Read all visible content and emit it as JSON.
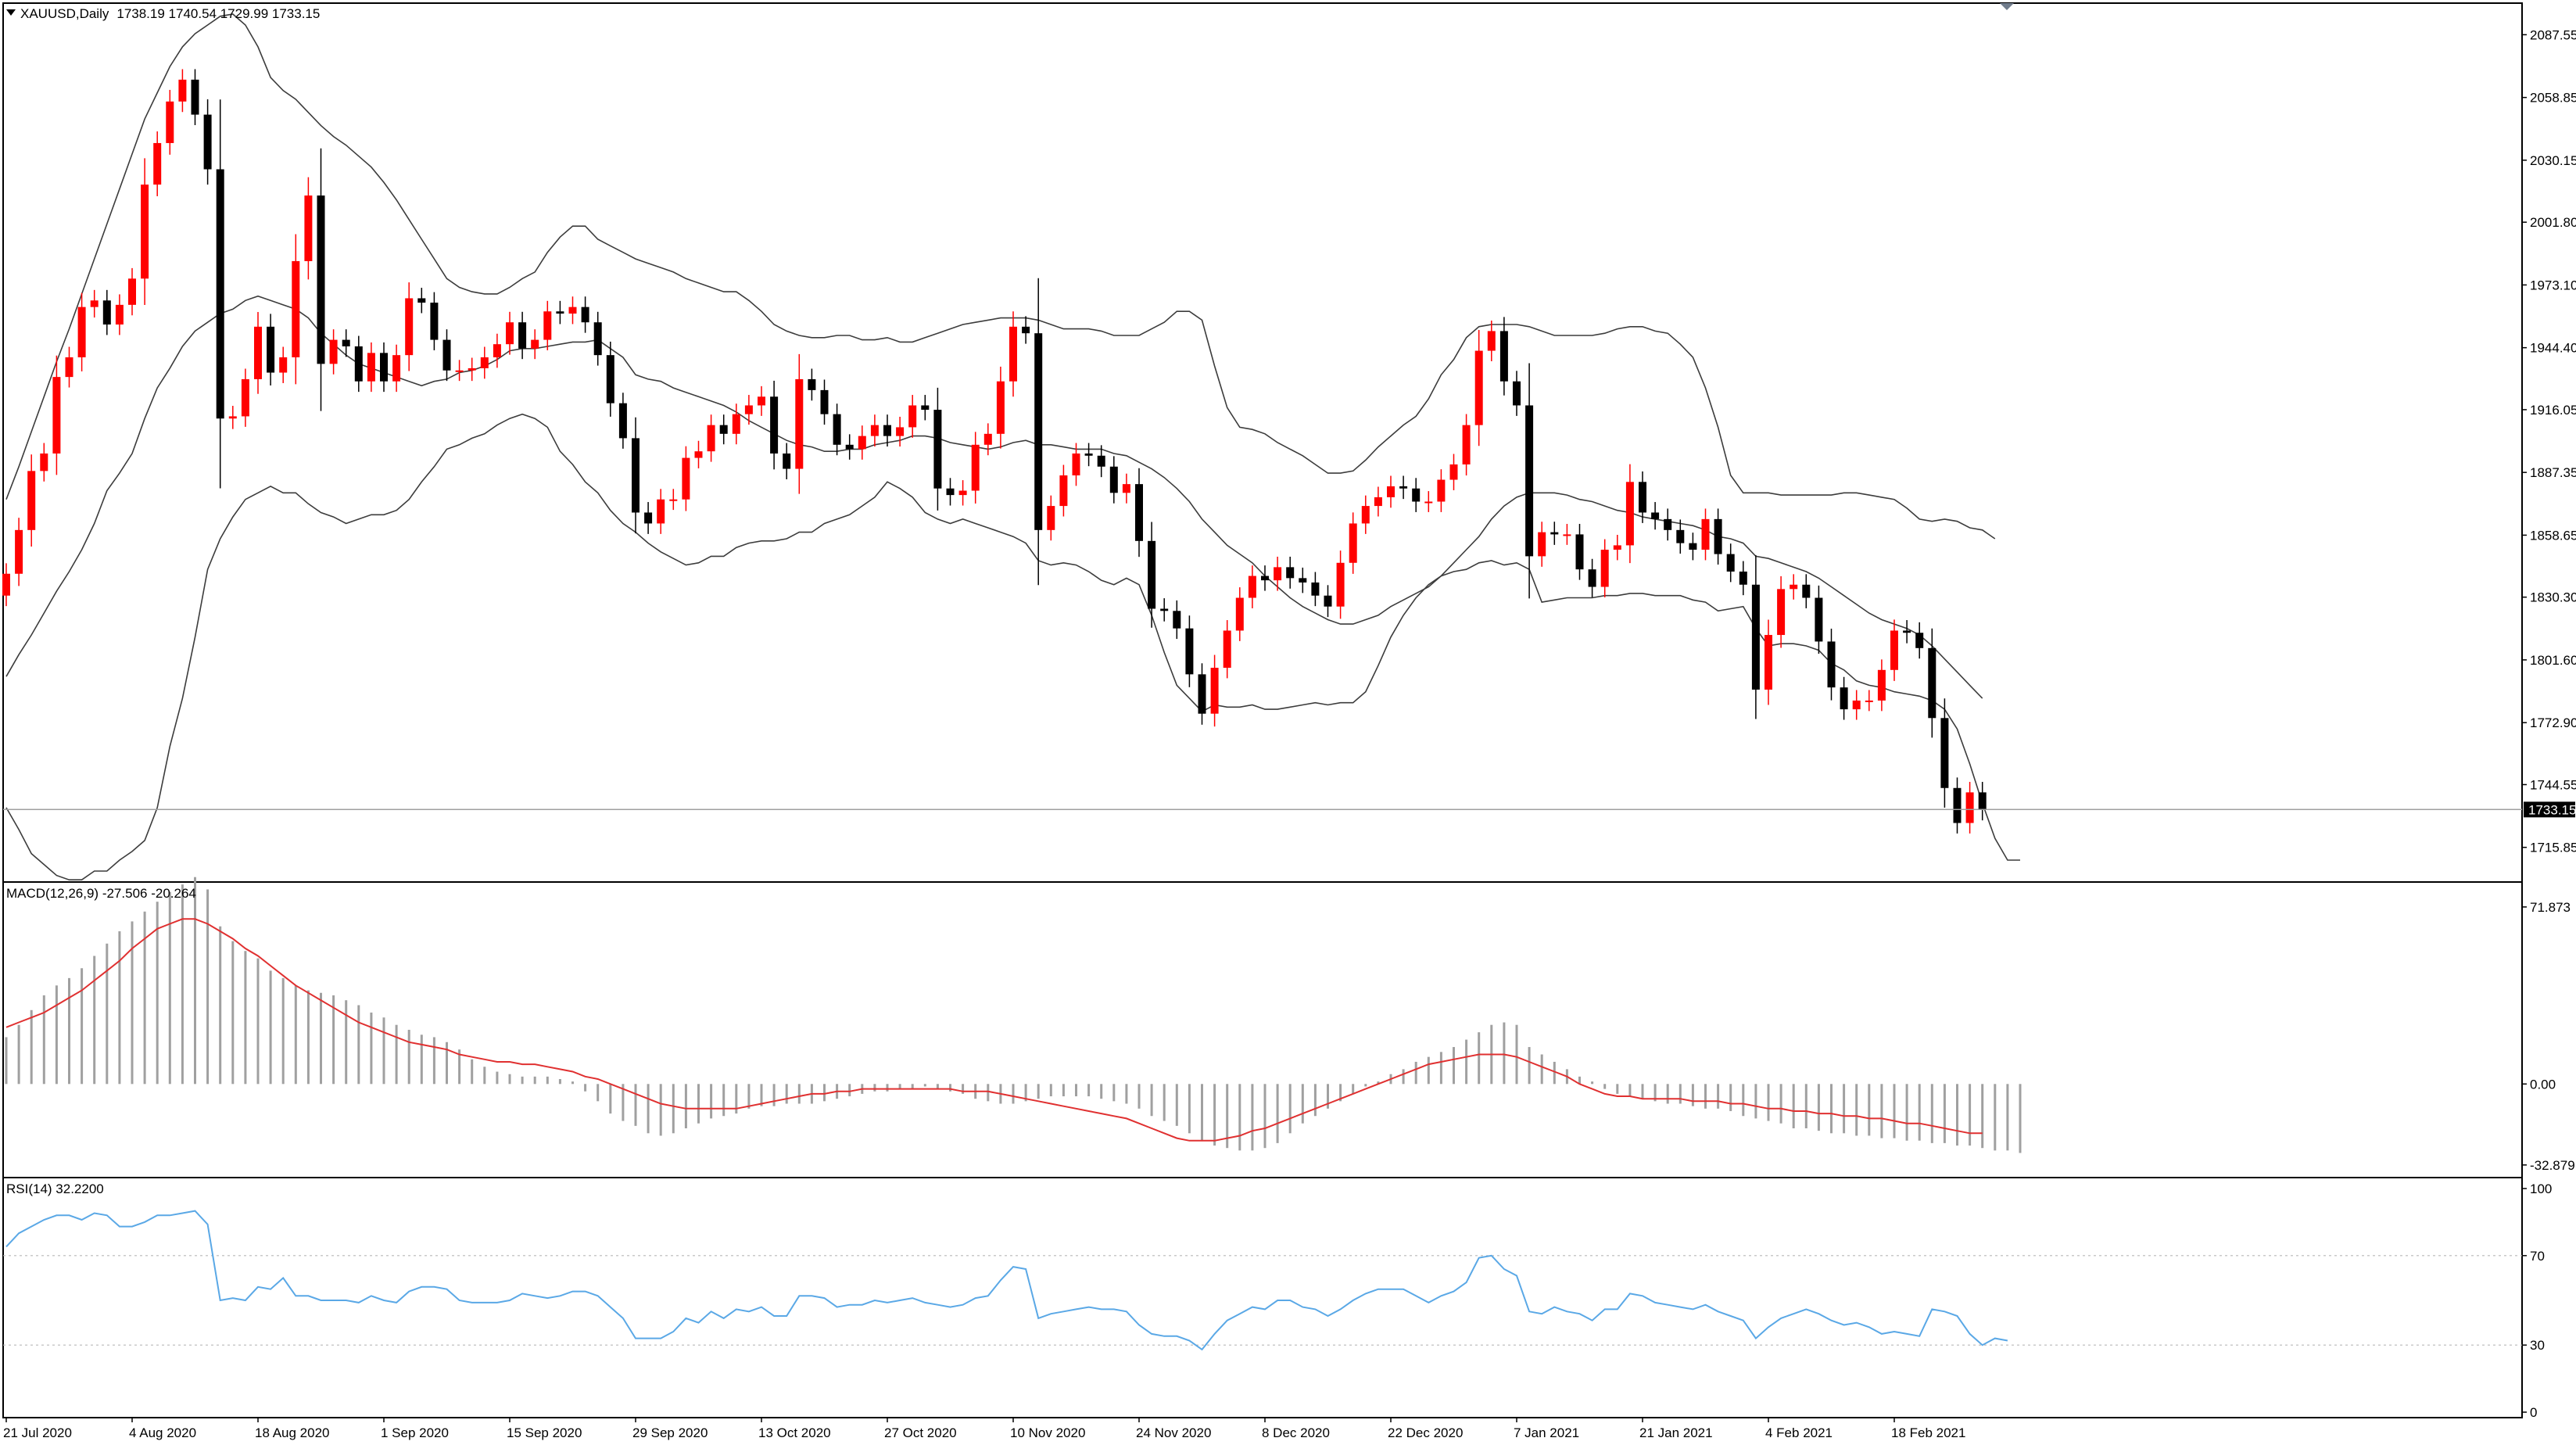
{
  "chart_data": [
    {
      "type": "candlestick",
      "symbol": "XAUUSD,Daily",
      "ohlc_label": "1738.19 1740.54 1729.99 1733.15",
      "last_price_label": "1733.15",
      "last_price": 1733.15,
      "ylim": [
        1700,
        2102
      ],
      "y_ticks": [
        {
          "value": 2087.55,
          "label": "2087.55"
        },
        {
          "value": 2058.85,
          "label": "2058.85"
        },
        {
          "value": 2030.15,
          "label": "2030.15"
        },
        {
          "value": 2001.8,
          "label": "2001.80"
        },
        {
          "value": 1973.1,
          "label": "1973.10"
        },
        {
          "value": 1944.4,
          "label": "1944.40"
        },
        {
          "value": 1916.05,
          "label": "1916.05"
        },
        {
          "value": 1887.35,
          "label": "1887.35"
        },
        {
          "value": 1858.65,
          "label": "1858.65"
        },
        {
          "value": 1830.3,
          "label": "1830.30"
        },
        {
          "value": 1801.6,
          "label": "1801.60"
        },
        {
          "value": 1772.9,
          "label": "1772.90"
        },
        {
          "value": 1744.55,
          "label": "1744.55"
        },
        {
          "value": 1715.85,
          "label": "1715.85"
        }
      ],
      "x_labels": [
        {
          "index": 0,
          "label": "21 Jul 2020"
        },
        {
          "index": 10,
          "label": "4 Aug 2020"
        },
        {
          "index": 20,
          "label": "18 Aug 2020"
        },
        {
          "index": 30,
          "label": "1 Sep 2020"
        },
        {
          "index": 40,
          "label": "15 Sep 2020"
        },
        {
          "index": 50,
          "label": "29 Sep 2020"
        },
        {
          "index": 60,
          "label": "13 Oct 2020"
        },
        {
          "index": 70,
          "label": "27 Oct 2020"
        },
        {
          "index": 80,
          "label": "10 Nov 2020"
        },
        {
          "index": 90,
          "label": "24 Nov 2020"
        },
        {
          "index": 100,
          "label": "8 Dec 2020"
        },
        {
          "index": 110,
          "label": "22 Dec 2020"
        },
        {
          "index": 120,
          "label": "7 Jan 2021"
        },
        {
          "index": 130,
          "label": "21 Jan 2021"
        },
        {
          "index": 140,
          "label": "4 Feb 2021"
        },
        {
          "index": 150,
          "label": "18 Feb 2021"
        }
      ],
      "colors": {
        "bull": "#ff0000",
        "bear": "#000000",
        "bands": "#3c3c3c"
      },
      "indicators": [
        "Bollinger Bands"
      ],
      "close": [
        1841,
        1861,
        1888,
        1896,
        1931,
        1940,
        1963,
        1966,
        1955,
        1964,
        1976,
        2019,
        2038,
        2057,
        2067,
        2051,
        2026,
        1912,
        1913,
        1930,
        1954,
        1933,
        1940,
        1984,
        2014,
        1937,
        1948,
        1945,
        1929,
        1942,
        1929,
        1941,
        1967,
        1965,
        1948,
        1934,
        1934,
        1935,
        1940,
        1946,
        1956,
        1944,
        1948,
        1961,
        1960,
        1963,
        1956,
        1941,
        1919,
        1903,
        1869,
        1864,
        1875,
        1875,
        1894,
        1897,
        1909,
        1905,
        1914,
        1918,
        1922,
        1896,
        1889,
        1930,
        1925,
        1914,
        1900,
        1898,
        1904,
        1909,
        1904,
        1908,
        1918,
        1916,
        1880,
        1877,
        1879,
        1900,
        1905,
        1929,
        1954,
        1951,
        1861,
        1872,
        1886,
        1896,
        1895,
        1890,
        1878,
        1882,
        1856,
        1825,
        1824,
        1816,
        1795,
        1777,
        1798,
        1815,
        1830,
        1840,
        1838,
        1844,
        1839,
        1837,
        1831,
        1826,
        1846,
        1864,
        1872,
        1876,
        1881,
        1880,
        1874,
        1874,
        1884,
        1891,
        1909,
        1943,
        1952,
        1929,
        1918,
        1849,
        1860,
        1859,
        1859,
        1843,
        1835,
        1852,
        1854,
        1883,
        1869,
        1866,
        1861,
        1855,
        1852,
        1866,
        1850,
        1842,
        1836,
        1788,
        1813,
        1834,
        1836,
        1830,
        1810,
        1789,
        1779,
        1783,
        1783,
        1797,
        1815,
        1814,
        1807,
        1775,
        1743,
        1727,
        1741,
        1733
      ],
      "sma20": [
        1794,
        1804,
        1813,
        1823,
        1833,
        1842,
        1852,
        1864,
        1879,
        1887,
        1896,
        1912,
        1926,
        1935,
        1945,
        1952,
        1956,
        1960,
        1962,
        1966,
        1968,
        1966,
        1964,
        1962,
        1958,
        1951,
        1946,
        1941,
        1937,
        1935,
        1933,
        1931,
        1929,
        1927,
        1929,
        1930,
        1933,
        1934,
        1936,
        1939,
        1943,
        1944,
        1944,
        1945,
        1946,
        1947,
        1947,
        1948,
        1944,
        1940,
        1932,
        1930,
        1929,
        1926,
        1924,
        1922,
        1920,
        1918,
        1915,
        1911,
        1908,
        1905,
        1902,
        1900,
        1899,
        1897,
        1897,
        1898,
        1898,
        1900,
        1901,
        1902,
        1904,
        1904,
        1903,
        1901,
        1900,
        1899,
        1898,
        1899,
        1901,
        1902,
        1900,
        1900,
        1899,
        1898,
        1898,
        1898,
        1896,
        1895,
        1892,
        1889,
        1885,
        1880,
        1874,
        1866,
        1860,
        1854,
        1850,
        1846,
        1840,
        1835,
        1830,
        1826,
        1823,
        1820,
        1818,
        1818,
        1820,
        1822,
        1826,
        1829,
        1832,
        1835,
        1840,
        1846,
        1852,
        1858,
        1866,
        1872,
        1876,
        1878,
        1878,
        1878,
        1877,
        1875,
        1874,
        1872,
        1870,
        1869,
        1867,
        1866,
        1865,
        1864,
        1863,
        1861,
        1858,
        1857,
        1855,
        1849,
        1848,
        1846,
        1844,
        1842,
        1839,
        1835,
        1831,
        1827,
        1823,
        1820,
        1818,
        1816,
        1813,
        1808,
        1802,
        1796,
        1790,
        1784
      ],
      "upper_band": [
        1875,
        1890,
        1906,
        1922,
        1938,
        1953,
        1969,
        1985,
        2001,
        2017,
        2033,
        2049,
        2061,
        2073,
        2082,
        2088,
        2092,
        2096,
        2097,
        2092,
        2082,
        2068,
        2062,
        2058,
        2052,
        2046,
        2041,
        2037,
        2032,
        2027,
        2020,
        2012,
        2003,
        1994,
        1985,
        1976,
        1972,
        1970,
        1969,
        1969,
        1972,
        1976,
        1979,
        1988,
        1995,
        2000,
        2000,
        1994,
        1991,
        1988,
        1985,
        1983,
        1981,
        1979,
        1976,
        1974,
        1972,
        1970,
        1970,
        1966,
        1961,
        1955,
        1952,
        1950,
        1949,
        1949,
        1950,
        1950,
        1948,
        1948,
        1949,
        1947,
        1947,
        1949,
        1951,
        1953,
        1955,
        1956,
        1957,
        1958,
        1958,
        1958,
        1957,
        1955,
        1953,
        1953,
        1953,
        1952,
        1950,
        1950,
        1950,
        1953,
        1956,
        1961,
        1961,
        1957,
        1936,
        1917,
        1908,
        1907,
        1905,
        1901,
        1898,
        1895,
        1891,
        1887,
        1887,
        1888,
        1893,
        1899,
        1904,
        1909,
        1913,
        1921,
        1932,
        1939,
        1949,
        1954,
        1955,
        1955,
        1955,
        1954,
        1952,
        1950,
        1950,
        1950,
        1950,
        1951,
        1953,
        1954,
        1954,
        1952,
        1951,
        1946,
        1940,
        1926,
        1908,
        1886,
        1878,
        1878,
        1878,
        1877,
        1877,
        1877,
        1877,
        1877,
        1878,
        1878,
        1877,
        1876,
        1875,
        1871,
        1866,
        1865,
        1866,
        1865,
        1862,
        1861,
        1857
      ],
      "lower_band": [
        1734,
        1724,
        1713,
        1708,
        1703,
        1701,
        1701,
        1705,
        1705,
        1710,
        1714,
        1719,
        1734,
        1762,
        1784,
        1812,
        1843,
        1857,
        1867,
        1875,
        1878,
        1881,
        1878,
        1878,
        1873,
        1869,
        1867,
        1864,
        1866,
        1868,
        1868,
        1870,
        1875,
        1883,
        1890,
        1898,
        1900,
        1903,
        1905,
        1909,
        1912,
        1914,
        1912,
        1908,
        1897,
        1891,
        1883,
        1878,
        1870,
        1864,
        1860,
        1855,
        1851,
        1848,
        1845,
        1846,
        1849,
        1849,
        1853,
        1855,
        1856,
        1856,
        1857,
        1860,
        1860,
        1864,
        1866,
        1868,
        1872,
        1876,
        1883,
        1880,
        1876,
        1869,
        1866,
        1864,
        1866,
        1864,
        1862,
        1860,
        1858,
        1855,
        1847,
        1845,
        1846,
        1845,
        1842,
        1838,
        1836,
        1839,
        1836,
        1822,
        1805,
        1790,
        1784,
        1778,
        1781,
        1780,
        1780,
        1781,
        1779,
        1779,
        1780,
        1781,
        1782,
        1781,
        1782,
        1782,
        1787,
        1799,
        1812,
        1822,
        1830,
        1836,
        1840,
        1842,
        1843,
        1846,
        1847,
        1845,
        1846,
        1843,
        1828,
        1829,
        1830,
        1830,
        1830,
        1831,
        1831,
        1832,
        1832,
        1831,
        1831,
        1831,
        1829,
        1828,
        1824,
        1825,
        1826,
        1816,
        1808,
        1809,
        1809,
        1808,
        1806,
        1800,
        1797,
        1792,
        1790,
        1789,
        1787,
        1786,
        1785,
        1783,
        1779,
        1770,
        1754,
        1736,
        1720,
        1710,
        1710
      ]
    },
    {
      "type": "bar+line",
      "name": "MACD(12,26,9)",
      "label": "MACD(12,26,9) -27.506 -20.264",
      "ylim": [
        -38,
        82
      ],
      "y_ticks": [
        {
          "value": 71.873,
          "label": "71.873"
        },
        {
          "value": 0.0,
          "label": "0.00"
        },
        {
          "value": -32.879,
          "label": "-32.879"
        }
      ],
      "colors": {
        "histogram": "#a0a0a0",
        "signal": "#e03030"
      },
      "histogram": [
        19,
        24,
        30,
        36,
        40,
        43,
        47,
        52,
        57,
        62,
        66,
        70,
        74,
        78,
        81,
        84,
        79,
        64,
        58,
        54,
        51,
        46,
        43,
        40,
        38,
        37,
        36,
        34,
        32,
        29,
        27,
        24,
        22,
        20,
        19,
        17,
        14,
        10,
        7,
        5,
        4,
        3,
        3,
        3,
        2,
        1,
        -3,
        -7,
        -12,
        -15,
        -17,
        -20,
        -21,
        -20,
        -18,
        -16,
        -14,
        -13,
        -12,
        -10,
        -9,
        -9,
        -8,
        -8,
        -8,
        -7,
        -6,
        -5,
        -4,
        -3,
        -3,
        -2,
        -2,
        -1,
        -2,
        -3,
        -4,
        -6,
        -7,
        -8,
        -8,
        -7,
        -6,
        -5,
        -5,
        -5,
        -5,
        -6,
        -7,
        -8,
        -10,
        -13,
        -15,
        -17,
        -20,
        -23,
        -25,
        -26,
        -27,
        -27,
        -26,
        -24,
        -20,
        -16,
        -13,
        -10,
        -7,
        -4,
        -1,
        1,
        4,
        6,
        9,
        11,
        13,
        15,
        18,
        21,
        24,
        25,
        24,
        15,
        12,
        9,
        6,
        3,
        1,
        -2,
        -4,
        -5,
        -6,
        -7,
        -8,
        -8,
        -9,
        -10,
        -10,
        -11,
        -13,
        -14,
        -15,
        -16,
        -18,
        -18,
        -19,
        -20,
        -20,
        -21,
        -21,
        -22,
        -22,
        -23,
        -23,
        -24,
        -24,
        -25,
        -25,
        -26,
        -27,
        -27,
        -28
      ],
      "signal": [
        23,
        25,
        27,
        29,
        32,
        35,
        38,
        42,
        46,
        50,
        55,
        59,
        63,
        65,
        67,
        67,
        65,
        62,
        59,
        55,
        52,
        48,
        44,
        40,
        37,
        34,
        31,
        28,
        25,
        23,
        21,
        19,
        17,
        16,
        15,
        14,
        12,
        11,
        10,
        9,
        9,
        8,
        8,
        7,
        6,
        5,
        3,
        2,
        0,
        -2,
        -4,
        -6,
        -8,
        -9,
        -10,
        -10,
        -10,
        -10,
        -10,
        -9,
        -8,
        -7,
        -6,
        -5,
        -4,
        -4,
        -3,
        -3,
        -2,
        -2,
        -2,
        -2,
        -2,
        -2,
        -2,
        -2,
        -3,
        -3,
        -3,
        -4,
        -5,
        -6,
        -7,
        -8,
        -9,
        -10,
        -11,
        -12,
        -13,
        -14,
        -16,
        -18,
        -20,
        -22,
        -23,
        -23,
        -23,
        -22,
        -21,
        -19,
        -18,
        -16,
        -14,
        -12,
        -10,
        -8,
        -6,
        -4,
        -2,
        0,
        2,
        4,
        6,
        8,
        9,
        10,
        11,
        12,
        12,
        12,
        11,
        9,
        7,
        5,
        3,
        0,
        -2,
        -4,
        -5,
        -5,
        -6,
        -6,
        -6,
        -6,
        -7,
        -7,
        -7,
        -8,
        -8,
        -9,
        -10,
        -10,
        -11,
        -11,
        -12,
        -12,
        -13,
        -13,
        -14,
        -14,
        -15,
        -16,
        -16,
        -17,
        -18,
        -19,
        -20,
        -20
      ]
    },
    {
      "type": "line",
      "name": "RSI(14)",
      "label": "RSI(14) 32.2200",
      "ylim": [
        0,
        100
      ],
      "y_ticks": [
        {
          "value": 100,
          "label": "100"
        },
        {
          "value": 70,
          "label": "70"
        },
        {
          "value": 30,
          "label": "30"
        },
        {
          "value": 0,
          "label": "0"
        }
      ],
      "levels": [
        70,
        30
      ],
      "colors": {
        "line": "#5aa8e6"
      },
      "values": [
        74,
        80,
        83,
        86,
        88,
        88,
        86,
        89,
        88,
        83,
        83,
        85,
        88,
        88,
        89,
        90,
        84,
        50,
        51,
        50,
        56,
        55,
        60,
        52,
        52,
        50,
        50,
        50,
        49,
        52,
        50,
        49,
        54,
        56,
        56,
        55,
        50,
        49,
        49,
        49,
        50,
        53,
        52,
        51,
        52,
        54,
        54,
        52,
        47,
        42,
        33,
        33,
        33,
        36,
        42,
        40,
        45,
        42,
        46,
        45,
        47,
        43,
        43,
        52,
        52,
        51,
        47,
        48,
        48,
        50,
        49,
        50,
        51,
        49,
        48,
        47,
        48,
        51,
        52,
        59,
        65,
        64,
        42,
        44,
        45,
        46,
        47,
        46,
        46,
        45,
        39,
        35,
        34,
        34,
        32,
        28,
        35,
        41,
        44,
        47,
        46,
        50,
        50,
        47,
        46,
        43,
        46,
        50,
        53,
        55,
        55,
        55,
        52,
        49,
        52,
        54,
        58,
        69,
        70,
        64,
        61,
        45,
        44,
        47,
        45,
        44,
        41,
        46,
        46,
        53,
        52,
        49,
        48,
        47,
        46,
        48,
        45,
        43,
        41,
        33,
        38,
        42,
        44,
        46,
        44,
        41,
        39,
        40,
        38,
        35,
        36,
        35,
        34,
        46,
        45,
        43,
        35,
        30,
        33,
        32
      ]
    }
  ]
}
